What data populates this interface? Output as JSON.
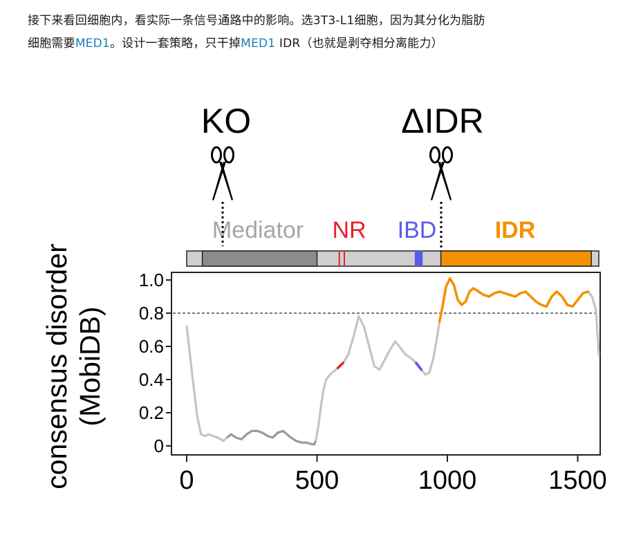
{
  "article": {
    "line1_pre": "接下来看回细胞内，看实际一条信号通路中的影响。选3T3-L1细胞，因为其分化为脂肪",
    "line2_pre": "细胞需要",
    "gene1": "MED1",
    "line2_mid": "。设计一套策略，只干掉",
    "gene2": "MED1",
    "line2_post": " IDR（也就是剥夺相分离能力）"
  },
  "colors": {
    "mediator": "#a0a0a0",
    "nr": "#e8202a",
    "ibd": "#5a5ae6",
    "idr": "#f39200",
    "trace": "#c4c4c4",
    "link": "#1a7fb8"
  },
  "figure": {
    "ko_label": "KO",
    "didr_label": "ΔIDR",
    "domain_labels": [
      "Mediator",
      "NR",
      "IBD",
      "IDR"
    ]
  },
  "chart_data": {
    "type": "line",
    "ylabel": [
      "consensus disorder",
      "(MobiDB)"
    ],
    "xlim": [
      0,
      1581
    ],
    "ylim": [
      0,
      1.0
    ],
    "x_ticks": [
      "0",
      "500",
      "1000",
      "1500"
    ],
    "y_ticks": [
      "0",
      "0.2",
      "0.4",
      "0.6",
      "0.8",
      "1.0"
    ],
    "threshold": 0.8,
    "series": [
      {
        "x": [
          0,
          20,
          40,
          55,
          70,
          85,
          100,
          120,
          140,
          155,
          170,
          190,
          210,
          230,
          250,
          270,
          290,
          310,
          330,
          350,
          370,
          385,
          400,
          420,
          440,
          460,
          480,
          490,
          495,
          505,
          515,
          525,
          535,
          550,
          565,
          580,
          600,
          620,
          640,
          660,
          680,
          700,
          720,
          740,
          760,
          780,
          800,
          820,
          840,
          860,
          880,
          900,
          915,
          930,
          945,
          960,
          970,
          980,
          995,
          1010,
          1025,
          1040,
          1055,
          1070,
          1085,
          1100,
          1120,
          1140,
          1160,
          1180,
          1200,
          1220,
          1240,
          1260,
          1280,
          1300,
          1320,
          1340,
          1360,
          1380,
          1400,
          1420,
          1440,
          1460,
          1480,
          1500,
          1520,
          1540,
          1555,
          1570,
          1581
        ],
        "y": [
          0.72,
          0.45,
          0.18,
          0.07,
          0.06,
          0.07,
          0.06,
          0.05,
          0.03,
          0.05,
          0.07,
          0.05,
          0.04,
          0.07,
          0.09,
          0.09,
          0.08,
          0.06,
          0.05,
          0.08,
          0.09,
          0.07,
          0.05,
          0.03,
          0.02,
          0.02,
          0.01,
          0.01,
          0.03,
          0.12,
          0.24,
          0.34,
          0.4,
          0.43,
          0.45,
          0.47,
          0.5,
          0.55,
          0.66,
          0.78,
          0.72,
          0.6,
          0.48,
          0.46,
          0.52,
          0.58,
          0.63,
          0.59,
          0.55,
          0.53,
          0.5,
          0.46,
          0.43,
          0.44,
          0.52,
          0.65,
          0.75,
          0.83,
          0.96,
          1.01,
          0.97,
          0.88,
          0.85,
          0.87,
          0.93,
          0.95,
          0.93,
          0.91,
          0.9,
          0.92,
          0.93,
          0.92,
          0.91,
          0.9,
          0.92,
          0.93,
          0.9,
          0.87,
          0.85,
          0.84,
          0.9,
          0.93,
          0.9,
          0.85,
          0.84,
          0.88,
          0.92,
          0.93,
          0.9,
          0.82,
          0.55
        ]
      }
    ],
    "highlights": [
      {
        "name": "NR",
        "x": [
          580,
          610
        ]
      },
      {
        "name": "IBD",
        "x": [
          870,
          910
        ]
      },
      {
        "name": "IDR",
        "x": [
          970,
          1550
        ]
      }
    ],
    "domains": [
      {
        "name": "Mediator",
        "start": 60,
        "end": 500
      },
      {
        "name": "NR",
        "start": 580,
        "end": 610
      },
      {
        "name": "IBD",
        "start": 875,
        "end": 905
      },
      {
        "name": "IDR",
        "start": 975,
        "end": 1552
      }
    ]
  }
}
